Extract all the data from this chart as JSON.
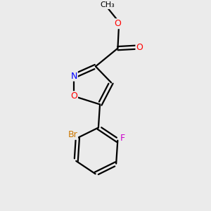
{
  "background_color": "#ebebeb",
  "bond_color": "#000000",
  "atom_colors": {
    "O": "#ff0000",
    "N": "#0000ff",
    "F": "#cc00cc",
    "Br": "#cc7700",
    "C": "#000000"
  },
  "figsize": [
    3.0,
    3.0
  ],
  "dpi": 100,
  "bond_lw": 1.6,
  "fontsize": 8.5
}
